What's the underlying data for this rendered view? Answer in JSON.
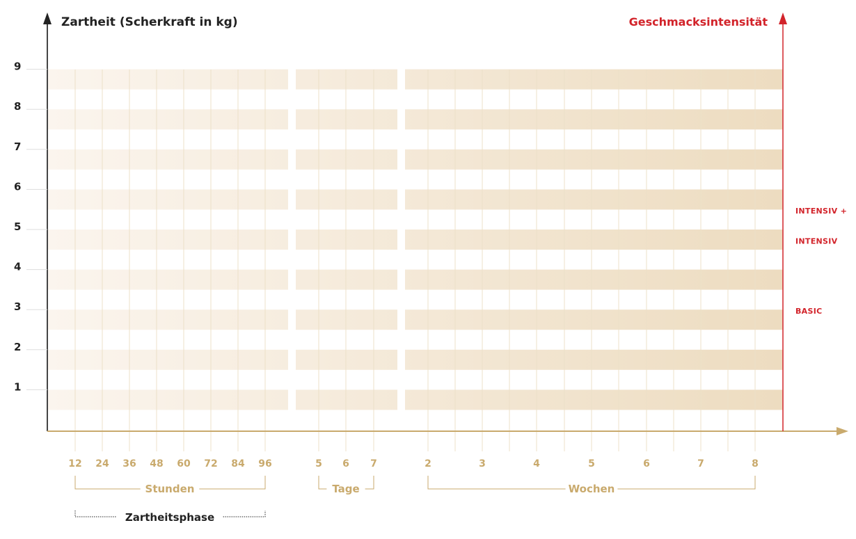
{
  "chart_data": {
    "type": "table",
    "y_axis": {
      "label": "Zartheit (Scherkraft in kg)",
      "ticks": [
        "1",
        "2",
        "3",
        "4",
        "5",
        "6",
        "7",
        "8",
        "9"
      ]
    },
    "secondary_axis": {
      "label": "Geschmacksintensität",
      "levels": [
        {
          "label": "BASIC",
          "y": 3
        },
        {
          "label": "INTENSIV",
          "y": 4.75
        },
        {
          "label": "INTENSIV +",
          "y": 5.5
        }
      ]
    },
    "x_groups": [
      {
        "name": "Stunden",
        "ticks": [
          "12",
          "24",
          "36",
          "48",
          "60",
          "72",
          "84",
          "96"
        ]
      },
      {
        "name": "Tage",
        "ticks": [
          "5",
          "6",
          "7"
        ]
      },
      {
        "name": "Wochen",
        "ticks": [
          "2",
          "3",
          "4",
          "5",
          "6",
          "7",
          "8"
        ]
      }
    ],
    "phase": {
      "label": "Zartheitsphase",
      "from": "12",
      "to": "96"
    },
    "colors": {
      "band_start": "#fbf5ee",
      "band_end": "#eddcc0",
      "gridline": "#ece0c8",
      "x_axis": "#c9aa6d",
      "y_axis": "#444444",
      "accent": "#d2232a"
    }
  }
}
